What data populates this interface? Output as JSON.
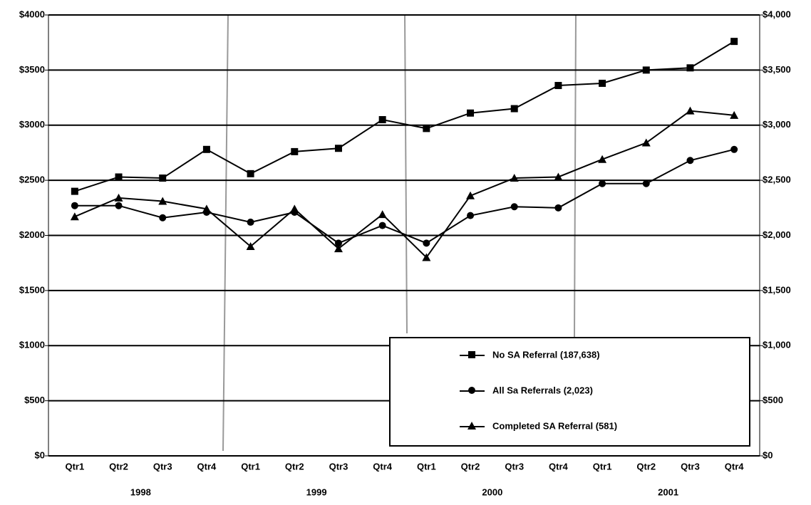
{
  "chart_data": {
    "type": "line",
    "categories": [
      "Qtr1",
      "Qtr2",
      "Qtr3",
      "Qtr4",
      "Qtr1",
      "Qtr2",
      "Qtr3",
      "Qtr4",
      "Qtr1",
      "Qtr2",
      "Qtr3",
      "Qtr4",
      "Qtr1",
      "Qtr2",
      "Qtr3",
      "Qtr4"
    ],
    "groups": [
      "1998",
      "1999",
      "2000",
      "2001"
    ],
    "series": [
      {
        "name": "No SA Referral (187,638)",
        "color": "#000000",
        "marker": "square",
        "values": [
          2400,
          2530,
          2520,
          2780,
          2560,
          2760,
          2790,
          3050,
          2970,
          3110,
          3150,
          3360,
          3380,
          3500,
          3520,
          3760
        ]
      },
      {
        "name": "All Sa Referrals (2,023)",
        "color": "#000000",
        "marker": "circle",
        "values": [
          2270,
          2270,
          2160,
          2210,
          2120,
          2210,
          1930,
          2090,
          1930,
          2180,
          2260,
          2250,
          2470,
          2470,
          2680,
          2780
        ]
      },
      {
        "name": "Completed  SA Referral (581)",
        "color": "#000000",
        "marker": "triangle",
        "values": [
          2170,
          2340,
          2310,
          2240,
          1900,
          2240,
          1880,
          2190,
          1800,
          2360,
          2520,
          2530,
          2690,
          2840,
          3130,
          3090
        ]
      }
    ],
    "ylim": [
      0,
      4000
    ],
    "yticks": [
      {
        "value": 0,
        "label": "$0"
      },
      {
        "value": 500,
        "label": "$500"
      },
      {
        "value": 1000,
        "label": "$1000"
      },
      {
        "value": 1500,
        "label": "$1500"
      },
      {
        "value": 2000,
        "label": "$2000"
      },
      {
        "value": 2500,
        "label": "$2500"
      },
      {
        "value": 3000,
        "label": "$3000"
      },
      {
        "value": 3500,
        "label": "$3500"
      },
      {
        "value": 4000,
        "label": "$4000"
      }
    ],
    "y2lim": [
      0,
      4000
    ],
    "y2ticks": [
      {
        "value": 0,
        "label": "$0"
      },
      {
        "value": 500,
        "label": "$500"
      },
      {
        "value": 1000,
        "label": "$1,000"
      },
      {
        "value": 1500,
        "label": "$1,500"
      },
      {
        "value": 2000,
        "label": "$2,000"
      },
      {
        "value": 2500,
        "label": "$2,500"
      },
      {
        "value": 3000,
        "label": "$3,000"
      },
      {
        "value": 3500,
        "label": "$3,500"
      },
      {
        "value": 4000,
        "label": "$4,000"
      }
    ],
    "grid": true
  }
}
